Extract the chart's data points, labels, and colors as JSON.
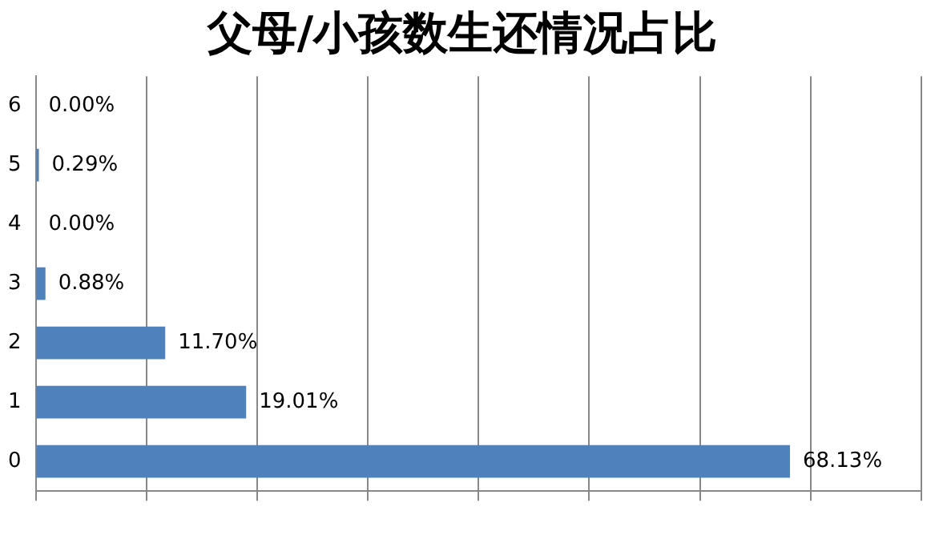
{
  "chart_data": {
    "type": "bar",
    "orientation": "horizontal",
    "title": "父母/小孩数生还情况占比",
    "categories": [
      "6",
      "5",
      "4",
      "3",
      "2",
      "1",
      "0"
    ],
    "values": [
      0,
      0.29,
      0,
      0.88,
      11.7,
      19.01,
      68.13
    ],
    "value_labels": [
      "0.00%",
      "0.29%",
      "0.00%",
      "0.88%",
      "11.70%",
      "19.01%",
      "68.13%"
    ],
    "color": "#4f81bd",
    "xlim": [
      0,
      80
    ],
    "xticks": [
      {
        "value": 0,
        "label": null
      },
      {
        "value": 10,
        "label": null
      },
      {
        "value": 20,
        "label": null
      },
      {
        "value": 30,
        "label": null
      },
      {
        "value": 40,
        "label": null
      },
      {
        "value": 50,
        "label": null
      },
      {
        "value": 60,
        "label": null
      },
      {
        "value": 70,
        "label": null
      },
      {
        "value": 80,
        "label": null
      }
    ],
    "grid": "x",
    "legend": false
  }
}
